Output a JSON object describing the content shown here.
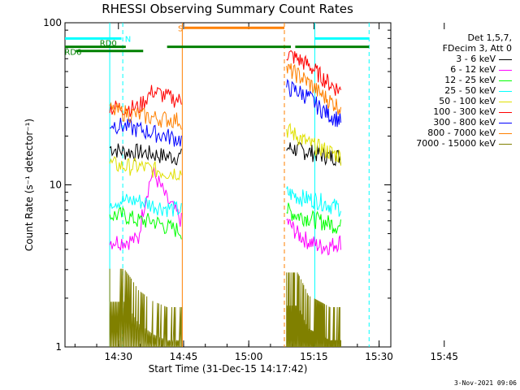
{
  "chart_data": {
    "type": "line",
    "title": "RHESSI Observing Summary Count Rates",
    "xlabel": "Start Time (31-Dec-15 14:17:42)",
    "ylabel": "Count Rate (s⁻¹ detector⁻¹)",
    "yscale": "log",
    "ylim": [
      1,
      100
    ],
    "xlim_minutes_after_start": [
      0,
      75
    ],
    "x_ticks": [
      "14:30",
      "14:45",
      "15:00",
      "15:15",
      "15:30",
      "15:45"
    ],
    "y_ticks": [
      "1",
      "10",
      "100"
    ],
    "legend_header": [
      "Det 1,5,7,",
      "FDecim 3, Att 0"
    ],
    "series": [
      {
        "name": "3 - 6 keV",
        "color": "#000000",
        "seg1": [
          17,
          16,
          16,
          15.5,
          15,
          15
        ],
        "seg2": [
          17,
          16.5,
          16,
          15.5,
          15,
          15
        ]
      },
      {
        "name": "6 - 12 keV",
        "color": "#ff00ff",
        "seg1": [
          4.5,
          4.5,
          4.6,
          12,
          8,
          6
        ],
        "seg2": [
          6,
          5,
          4.5,
          4.2,
          4.2,
          4.5
        ]
      },
      {
        "name": "12 - 25 keV",
        "color": "#00ff00",
        "seg1": [
          6.5,
          6.5,
          6,
          6,
          5.5,
          5.2
        ],
        "seg2": [
          7,
          6.5,
          6.3,
          6,
          5.8,
          5.5
        ]
      },
      {
        "name": "25 - 50 keV",
        "color": "#00ffff",
        "seg1": [
          8,
          8,
          8,
          7.5,
          7.2,
          7
        ],
        "seg2": [
          9,
          8.5,
          8.2,
          8,
          7.5,
          7.2
        ]
      },
      {
        "name": "50 - 100 keV",
        "color": "#e0e000",
        "seg1": [
          13.5,
          13,
          13,
          12.5,
          12,
          12
        ],
        "seg2": [
          22,
          20,
          18,
          17,
          16,
          15
        ]
      },
      {
        "name": "100 - 300 keV",
        "color": "#ff0000",
        "seg1": [
          30,
          30,
          30,
          38,
          35,
          33
        ],
        "seg2": [
          65,
          60,
          55,
          48,
          42,
          38
        ]
      },
      {
        "name": "300 - 800 keV",
        "color": "#0000ff",
        "seg1": [
          24,
          23,
          22,
          21,
          20,
          19
        ],
        "seg2": [
          40,
          38,
          35,
          30,
          27,
          25
        ]
      },
      {
        "name": "800 - 7000 keV",
        "color": "#ff8000",
        "seg1": [
          29,
          28,
          27,
          26,
          25.5,
          25
        ],
        "seg2": [
          52,
          48,
          43,
          37,
          33,
          30
        ]
      },
      {
        "name": "7000 - 15000 keV",
        "color": "#808000",
        "seg1": [
          1.9,
          1.9,
          1.4,
          1.2,
          1.1,
          1.1
        ],
        "seg2": [
          1.8,
          1.8,
          1.3,
          1.2,
          1.1,
          1.1
        ]
      }
    ],
    "segments_minutes": [
      [
        10.3,
        26.8
      ],
      [
        51,
        63.5
      ]
    ],
    "flags": [
      {
        "label": "N",
        "color": "#00ffff",
        "intervals": [
          [
            0,
            13
          ]
        ],
        "level": 80,
        "vlines": [
          10.3,
          13.3,
          57.5,
          70
        ]
      },
      {
        "label": "S",
        "color": "#ff8000",
        "intervals": [
          [
            27.5,
            50.5
          ]
        ],
        "level": 93,
        "vlines": [
          27,
          50.5
        ]
      },
      {
        "label": "RD0",
        "color": "#008000",
        "intervals": [
          [
            0,
            14
          ],
          [
            23.5,
            52
          ],
          [
            53,
            70
          ]
        ],
        "level": 71
      },
      {
        "label": "RD6",
        "color": "#008000",
        "intervals": [
          [
            2.5,
            18
          ]
        ],
        "level": 67
      },
      {
        "label": "",
        "color": "#00ffff",
        "intervals": [
          [
            57.5,
            70
          ]
        ],
        "level": 80
      }
    ]
  },
  "timestamp": "3-Nov-2021 09:06"
}
